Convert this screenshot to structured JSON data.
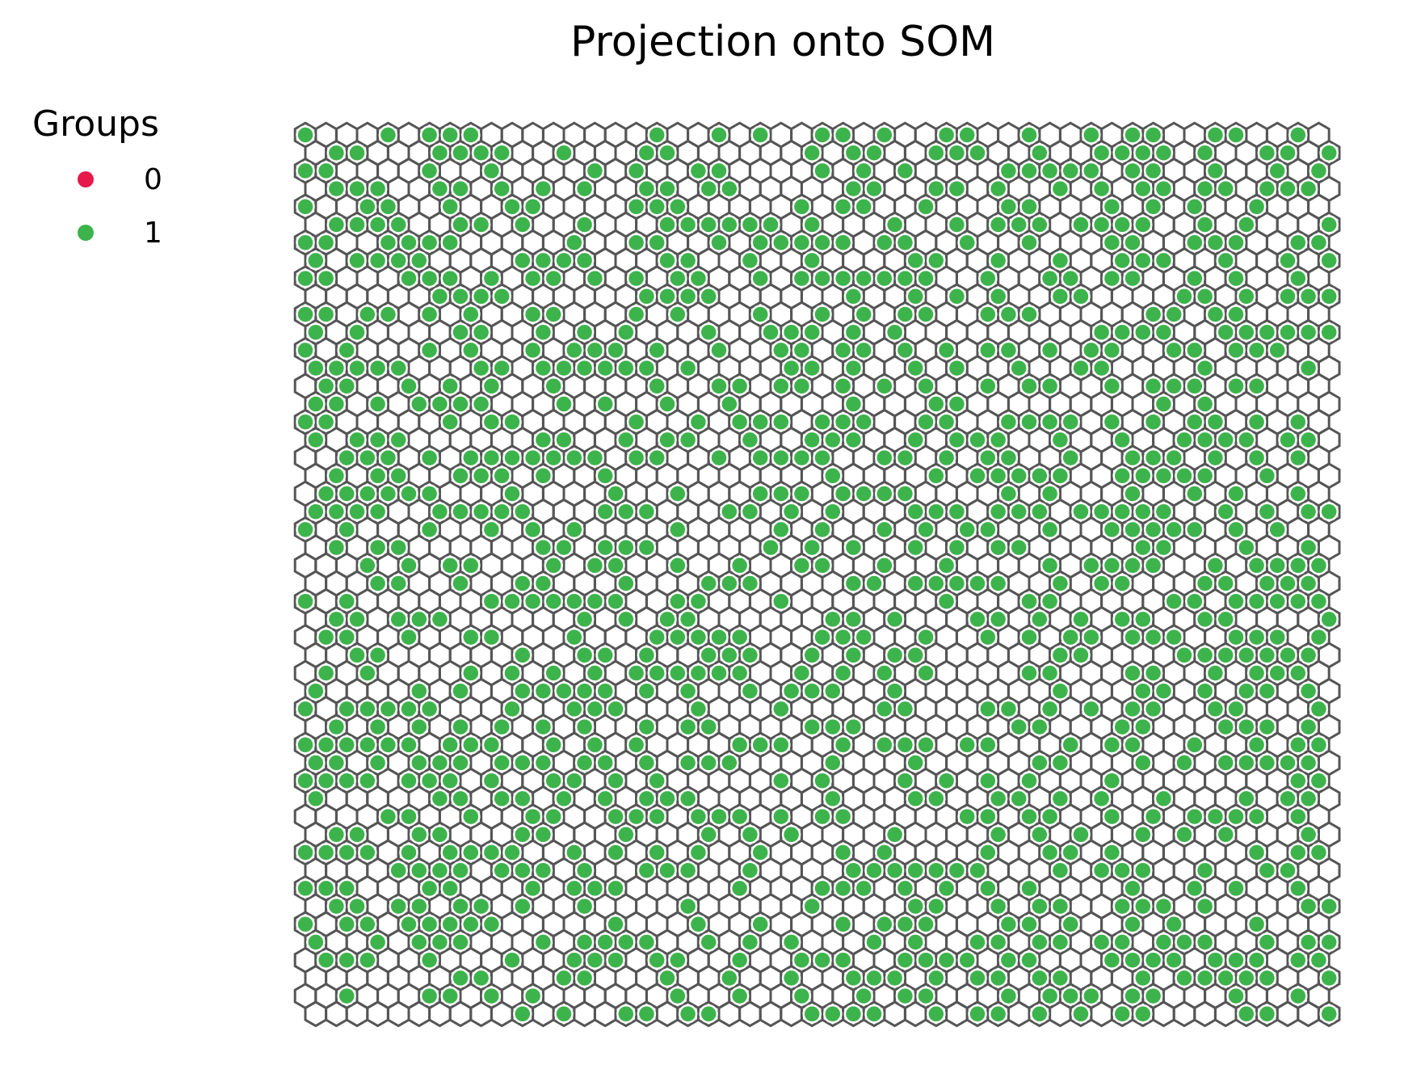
{
  "chart_data": {
    "type": "scatter",
    "subtype": "som-hexagonal-projection",
    "title": "Projection onto SOM",
    "grid": {
      "columns": 50,
      "rows": 50,
      "topology": "hexagonal"
    },
    "legend": {
      "title": "Groups",
      "placement": "top-left",
      "entries": [
        {
          "label": "0",
          "color": "#e6194b"
        },
        {
          "label": "1",
          "color": "#3cb44b"
        }
      ]
    },
    "colors": {
      "hex_edge": "#555555",
      "marker_edge": "#ffffff"
    },
    "marker_density": {
      "group_1": 0.45,
      "group_0": 0.0
    },
    "random_seed": 7
  }
}
